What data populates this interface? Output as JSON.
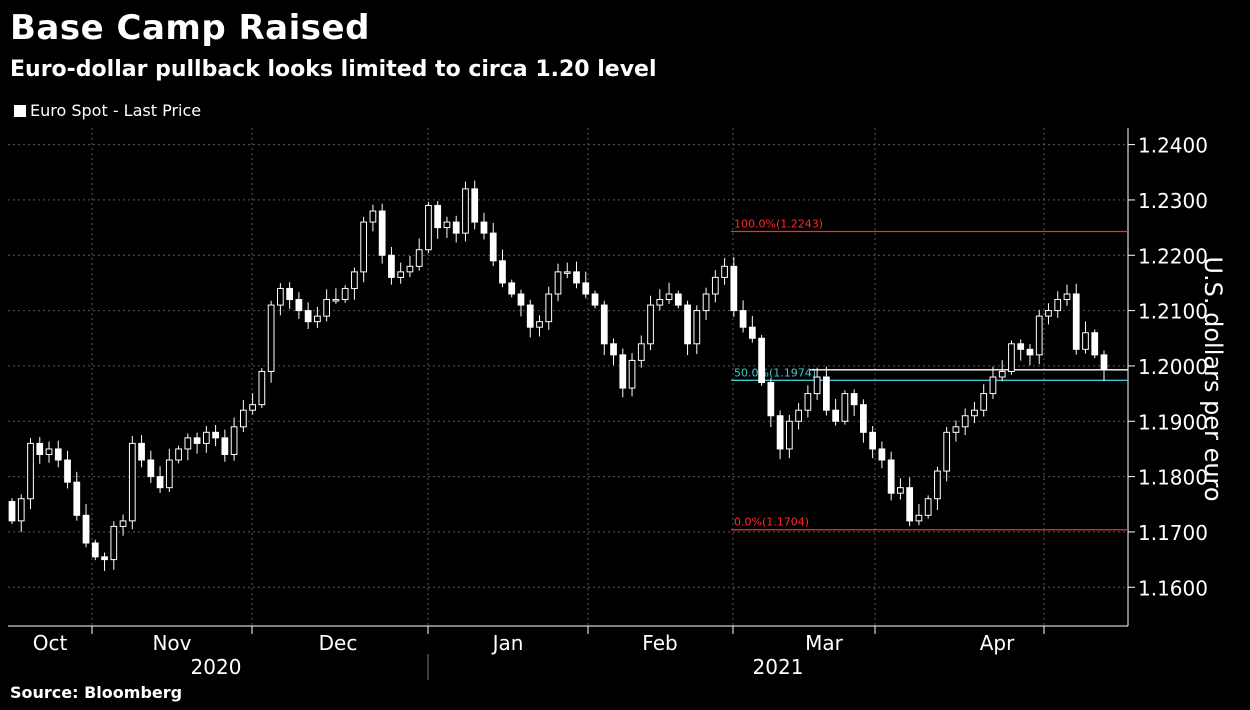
{
  "header": {
    "title": "Base Camp Raised",
    "subtitle": "Euro-dollar pullback looks limited to circa 1.20 level"
  },
  "footer": {
    "source": "Source: Bloomberg"
  },
  "colors": {
    "background": "#000000",
    "candle": "#ffffff",
    "grid": "#5a5a5a",
    "fib_line": "#ff2a2a",
    "fib_mid_line": "#3cc8d2",
    "last_price_line": "#ffffff"
  },
  "chart_data": {
    "type": "candlestick",
    "legend": [
      {
        "name": "Euro Spot - Last Price",
        "color": "#ffffff"
      }
    ],
    "ylabel": "U.S. dollars per euro",
    "ylim": [
      1.153,
      1.243
    ],
    "yticks": [
      "1.2400",
      "1.2300",
      "1.2200",
      "1.2100",
      "1.2000",
      "1.1900",
      "1.1800",
      "1.1700",
      "1.1600"
    ],
    "xticks": [
      "Oct",
      "Nov",
      "Dec",
      "Jan",
      "Feb",
      "Mar",
      "Apr"
    ],
    "years": [
      "2020",
      "2021"
    ],
    "grid": true,
    "fibonacci": [
      {
        "label": "100.0%(1.2243)",
        "value": 1.2243,
        "color": "#ff2a2a"
      },
      {
        "label": "50.0%(1.1974)",
        "value": 1.1974,
        "color": "#3cc8d2"
      },
      {
        "label": "0.0%(1.1704)",
        "value": 1.1704,
        "color": "#ff2a2a"
      }
    ],
    "last_price": 1.1993,
    "close": [
      1.172,
      1.176,
      1.186,
      1.184,
      1.185,
      1.183,
      1.179,
      1.173,
      1.168,
      1.1655,
      1.165,
      1.171,
      1.172,
      1.186,
      1.183,
      1.18,
      1.178,
      1.183,
      1.185,
      1.187,
      1.186,
      1.188,
      1.187,
      1.184,
      1.189,
      1.192,
      1.193,
      1.199,
      1.211,
      1.214,
      1.212,
      1.21,
      1.208,
      1.209,
      1.212,
      1.212,
      1.214,
      1.217,
      1.226,
      1.228,
      1.22,
      1.216,
      1.217,
      1.218,
      1.221,
      1.229,
      1.225,
      1.226,
      1.224,
      1.232,
      1.226,
      1.224,
      1.219,
      1.215,
      1.213,
      1.211,
      1.207,
      1.208,
      1.213,
      1.217,
      1.217,
      1.215,
      1.213,
      1.211,
      1.204,
      1.202,
      1.196,
      1.201,
      1.204,
      1.211,
      1.212,
      1.213,
      1.211,
      1.204,
      1.21,
      1.213,
      1.216,
      1.218,
      1.21,
      1.207,
      1.205,
      1.197,
      1.191,
      1.185,
      1.19,
      1.192,
      1.195,
      1.198,
      1.192,
      1.19,
      1.195,
      1.193,
      1.188,
      1.185,
      1.183,
      1.177,
      1.178,
      1.172,
      1.173,
      1.176,
      1.181,
      1.188,
      1.189,
      1.191,
      1.192,
      1.195,
      1.198,
      1.199,
      1.204,
      1.203,
      1.202,
      1.209,
      1.21,
      1.212,
      1.213,
      1.203,
      1.206,
      1.202,
      1.1993
    ]
  }
}
